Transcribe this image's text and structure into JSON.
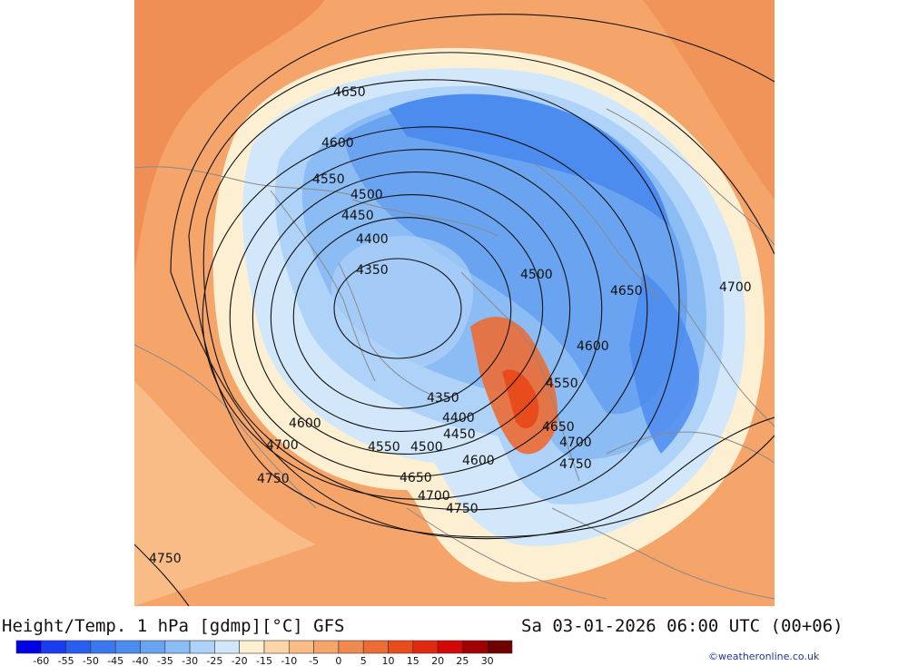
{
  "title_left": "Height/Temp. 1 hPa [gdmp][°C] GFS",
  "title_right": "Sa 03-01-2026 06:00 UTC (00+06)",
  "credit": "©weatheronline.co.uk",
  "colorbar": {
    "colors": [
      "#0000e6",
      "#1a3cf0",
      "#2a5ef0",
      "#3a78f0",
      "#4c8cee",
      "#6aa4f0",
      "#8cbcf4",
      "#aed2f8",
      "#d2e8fa",
      "#fdf0d2",
      "#fcd6a8",
      "#f9bc86",
      "#f5a46a",
      "#ef8a50",
      "#ec6c34",
      "#e84c1c",
      "#e02a10",
      "#d40808",
      "#a00000",
      "#700000"
    ],
    "ticks": [
      "-60",
      "-55",
      "-50",
      "-45",
      "-40",
      "-35",
      "-30",
      "-25",
      "-20",
      "-15",
      "-10",
      "-5",
      "0",
      "5",
      "10",
      "15",
      "20",
      "25",
      "30"
    ]
  },
  "contour_labels": [
    {
      "text": "4650"
    },
    {
      "text": "4600"
    },
    {
      "text": "4550"
    },
    {
      "text": "4500"
    },
    {
      "text": "4450"
    },
    {
      "text": "4400"
    },
    {
      "text": "4350"
    },
    {
      "text": "4500"
    },
    {
      "text": "4650"
    },
    {
      "text": "4700"
    },
    {
      "text": "4600"
    },
    {
      "text": "4550"
    },
    {
      "text": "4350"
    },
    {
      "text": "4400"
    },
    {
      "text": "4450"
    },
    {
      "text": "4650"
    },
    {
      "text": "4600"
    },
    {
      "text": "4700"
    },
    {
      "text": "4550"
    },
    {
      "text": "4500"
    },
    {
      "text": "4600"
    },
    {
      "text": "4700"
    },
    {
      "text": "4750"
    },
    {
      "text": "4750"
    },
    {
      "text": "4650"
    },
    {
      "text": "4700"
    },
    {
      "text": "4750"
    },
    {
      "text": "4750"
    }
  ]
}
